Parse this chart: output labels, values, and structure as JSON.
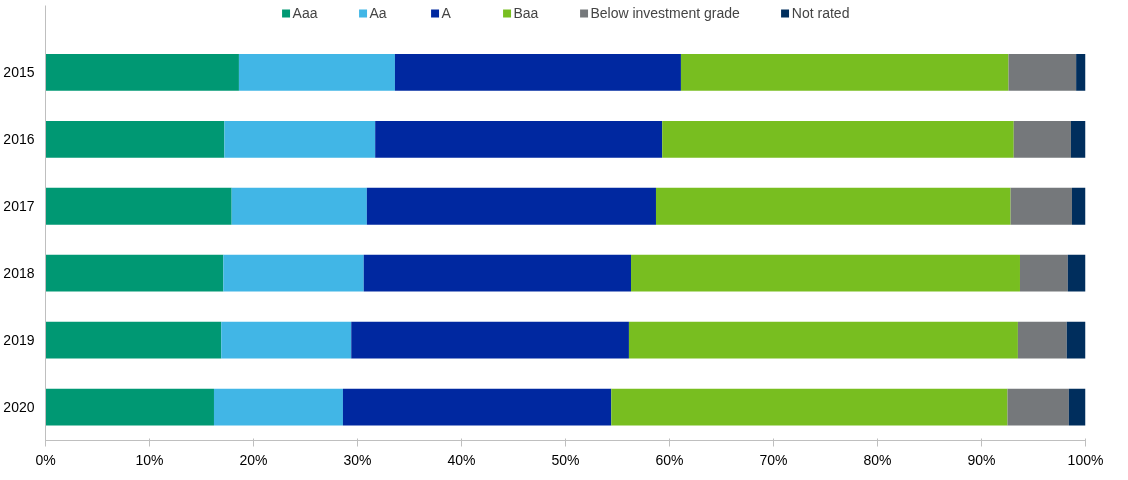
{
  "chart_data": {
    "type": "bar",
    "orientation": "horizontal",
    "stacked": true,
    "categories": [
      "2015",
      "2016",
      "2017",
      "2018",
      "2019",
      "2020"
    ],
    "series": [
      {
        "name": "Aaa",
        "color": "#009873",
        "values": [
          18.6,
          17.2,
          17.9,
          17.1,
          16.9,
          16.2
        ]
      },
      {
        "name": "Aa",
        "color": "#41b6e6",
        "values": [
          15.0,
          14.5,
          13.0,
          13.5,
          12.5,
          12.4
        ]
      },
      {
        "name": "A",
        "color": "#0028a0",
        "values": [
          27.5,
          27.6,
          27.8,
          25.7,
          26.7,
          25.8
        ]
      },
      {
        "name": "Baa",
        "color": "#78be20",
        "values": [
          31.5,
          33.8,
          34.1,
          37.4,
          37.4,
          38.1
        ]
      },
      {
        "name": "Below investment grade",
        "color": "#75787b",
        "values": [
          6.5,
          5.5,
          5.9,
          4.6,
          4.7,
          5.9
        ]
      },
      {
        "name": "Not rated",
        "color": "#002e5d",
        "values": [
          0.9,
          1.4,
          1.3,
          1.7,
          1.8,
          1.6
        ]
      }
    ],
    "xlim": [
      0,
      100
    ],
    "xticks": [
      {
        "value": 0,
        "label": "0%"
      },
      {
        "value": 10,
        "label": "10%"
      },
      {
        "value": 20,
        "label": "20%"
      },
      {
        "value": 30,
        "label": "30%"
      },
      {
        "value": 40,
        "label": "40%"
      },
      {
        "value": 50,
        "label": "50%"
      },
      {
        "value": 60,
        "label": "60%"
      },
      {
        "value": 70,
        "label": "70%"
      },
      {
        "value": 80,
        "label": "80%"
      },
      {
        "value": 90,
        "label": "90%"
      },
      {
        "value": 100,
        "label": "100%"
      }
    ],
    "legend": "top",
    "grid": false
  }
}
